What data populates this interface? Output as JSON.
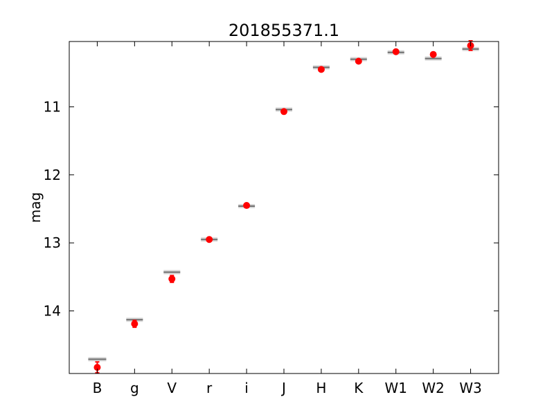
{
  "chart_data": {
    "type": "scatter",
    "title": "201855371.1",
    "xlabel": "",
    "ylabel": "mag",
    "y_inverted": true,
    "ylim": [
      14.92,
      10.04
    ],
    "yticks": [
      11,
      12,
      13,
      14
    ],
    "grid": false,
    "categories": [
      "B",
      "g",
      "V",
      "r",
      "i",
      "J",
      "H",
      "K",
      "W1",
      "W2",
      "W3"
    ],
    "series": [
      {
        "marker": "circle",
        "values": [
          14.83,
          14.19,
          13.53,
          12.95,
          12.45,
          11.07,
          10.45,
          10.33,
          10.19,
          10.23,
          10.1
        ],
        "errors": [
          0.08,
          0.05,
          0.05,
          0.03,
          0.02,
          0.02,
          0.02,
          0.02,
          0.02,
          0.02,
          0.07
        ]
      },
      {
        "marker": "bar",
        "values": [
          14.71,
          14.13,
          13.43,
          12.95,
          12.46,
          11.04,
          10.42,
          10.3,
          10.2,
          10.29,
          10.15
        ]
      }
    ],
    "colors": {
      "points": "#ff0000",
      "model": "#6e6e6e",
      "axes": "#000000"
    }
  }
}
